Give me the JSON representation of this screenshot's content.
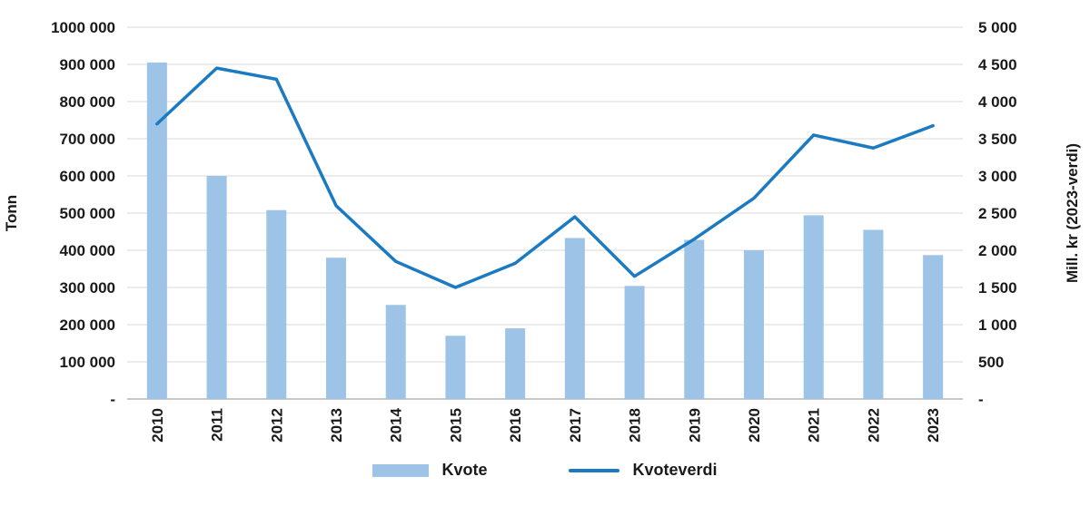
{
  "chart_data": {
    "type": "bar-line-combo",
    "categories": [
      "2010",
      "2011",
      "2012",
      "2013",
      "2014",
      "2015",
      "2016",
      "2017",
      "2018",
      "2019",
      "2020",
      "2021",
      "2022",
      "2023"
    ],
    "series": [
      {
        "name": "Kvote",
        "type": "bar",
        "axis": "left",
        "color": "#9dc3e6",
        "values": [
          905000,
          600000,
          508000,
          380000,
          253000,
          170000,
          190000,
          433000,
          304000,
          428000,
          400000,
          494000,
          455000,
          387000
        ]
      },
      {
        "name": "Kvoteverdi",
        "type": "line",
        "axis": "right",
        "color": "#1b7ac2",
        "values": [
          3700,
          4450,
          4300,
          2600,
          1850,
          1500,
          1825,
          2450,
          1650,
          2150,
          2700,
          3550,
          3375,
          3675
        ]
      }
    ],
    "left_axis": {
      "title": "Tonn",
      "min": 0,
      "max": 1000000,
      "step": 100000,
      "tick_labels_top_to_bottom": [
        "1000 000",
        "900 000",
        "800 000",
        "700 000",
        "600 000",
        "500 000",
        "400 000",
        "300 000",
        "200 000",
        "100 000",
        "-"
      ]
    },
    "right_axis": {
      "title": "Mill. kr (2023-verdi)",
      "min": 0,
      "max": 5000,
      "step": 500,
      "tick_labels_top_to_bottom": [
        "5 000",
        "4 500",
        "4 000",
        "3 500",
        "3 000",
        "2 500",
        "2 000",
        "1 500",
        "1 000",
        "500",
        "-"
      ]
    },
    "grid": true,
    "legend_position": "bottom"
  },
  "colors": {
    "bar": "#9dc3e6",
    "line": "#1b7ac2",
    "grid": "#d9d9d9",
    "axis_line": "#a6a6a6",
    "text": "#1a1a1a"
  }
}
